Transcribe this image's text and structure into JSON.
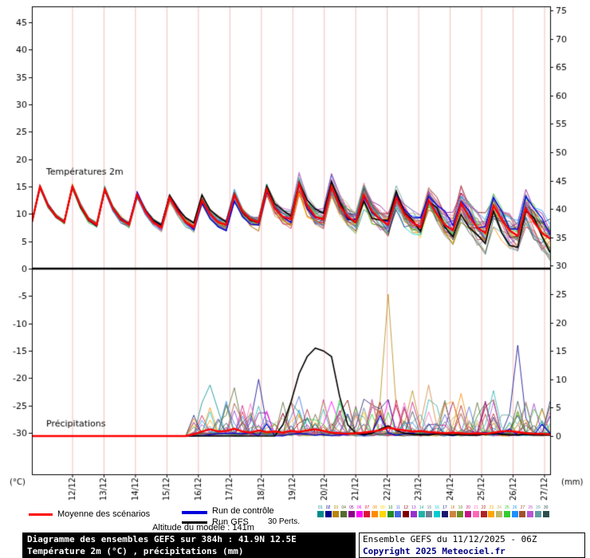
{
  "chart_data": {
    "type": "line",
    "title": "Diagramme des ensembles GEFS sur 384h : 41.9N 12.5E",
    "panels": {
      "temperature_label": "Températures 2m",
      "precipitation_label": "Précipitations"
    },
    "x_dates": [
      "12/12",
      "13/12",
      "14/12",
      "15/12",
      "16/12",
      "17/12",
      "18/12",
      "19/12",
      "20/12",
      "21/12",
      "22/12",
      "23/12",
      "24/12",
      "25/12",
      "26/12",
      "27/12"
    ],
    "left_axis": {
      "unit": "(°C)",
      "ticks": [
        45,
        40,
        35,
        30,
        25,
        20,
        15,
        10,
        5,
        0,
        -5,
        -10,
        -15,
        -20,
        -25,
        -30
      ]
    },
    "right_axis": {
      "unit": "(mm)",
      "ticks": [
        75,
        70,
        65,
        60,
        55,
        50,
        45,
        40,
        35,
        30,
        25,
        20,
        15,
        10,
        5,
        0
      ]
    },
    "step_hours": 6,
    "run_hours": 384,
    "series": {
      "temp_mean": [
        8.5,
        15,
        11.5,
        9.5,
        8.5,
        15,
        11.5,
        9,
        8,
        14.5,
        11,
        9,
        8,
        13.5,
        10.5,
        8.5,
        7.5,
        13,
        10.5,
        8.5,
        7.5,
        12.5,
        10,
        8.5,
        8,
        13.5,
        10.5,
        9,
        8.5,
        14.5,
        11,
        9.5,
        9,
        15.5,
        11.5,
        9.5,
        9,
        15,
        11.5,
        9.5,
        8.5,
        13.5,
        10.5,
        9,
        8,
        13,
        10,
        8.5,
        7.5,
        12.5,
        10,
        8,
        7,
        12,
        9.5,
        7.5,
        6.5,
        11.5,
        9,
        7,
        6,
        11,
        8.5,
        6.5,
        5.5
      ],
      "precip_mean": [
        0,
        0,
        0,
        0,
        0,
        0,
        0,
        0,
        0,
        0,
        0,
        0,
        0,
        0,
        0,
        0,
        0,
        0,
        0,
        0,
        0.3,
        0.8,
        1.2,
        0.8,
        0.9,
        1.3,
        0.8,
        0.6,
        1.0,
        0.7,
        0.8,
        0.6,
        0.9,
        0.7,
        1.0,
        1.2,
        0.9,
        0.6,
        0.5,
        0.4,
        0.5,
        0.6,
        0.8,
        1.0,
        1.5,
        1.2,
        1.0,
        0.8,
        0.9,
        0.7,
        0.6,
        0.5,
        0.6,
        0.5,
        0.4,
        0.5,
        0.4,
        0.6,
        0.8,
        0.9,
        0.7,
        0.5,
        0.4,
        0.4,
        0.3
      ],
      "gfs_precip": [
        0,
        0,
        0,
        0,
        0,
        0,
        0,
        0,
        0,
        0,
        0,
        0,
        0,
        0,
        0,
        0,
        0,
        0,
        0,
        0,
        0,
        0,
        0,
        0,
        0,
        0,
        0,
        0,
        0,
        0,
        0,
        2,
        6,
        11,
        14,
        15.5,
        15,
        14,
        7,
        2,
        0.5,
        0.3,
        0.5,
        1.2,
        1.8,
        1,
        0.5,
        0.3,
        0.3,
        0.2,
        0.4,
        0.3,
        0.2,
        0.3,
        0.2,
        0.2,
        0.3,
        0.4,
        0.3,
        0.2,
        0.2,
        0.3,
        0.2,
        0.2,
        0.2
      ]
    },
    "precip_spikes": [
      {
        "member": 2,
        "t": 44,
        "value": 25
      },
      {
        "member": 1,
        "t": 60,
        "value": 16
      },
      {
        "member": 1,
        "t": 28,
        "value": 10
      },
      {
        "member": 0,
        "t": 22,
        "value": 9
      },
      {
        "member": 3,
        "t": 25,
        "value": 8.5
      },
      {
        "member": 17,
        "t": 49,
        "value": 9
      },
      {
        "member": 7,
        "t": 53,
        "value": 7.5
      },
      {
        "member": 13,
        "t": 57,
        "value": 8
      },
      {
        "member": 4,
        "t": 52,
        "value": 6
      },
      {
        "member": 10,
        "t": 33,
        "value": 7
      },
      {
        "member": 2,
        "t": 47,
        "value": 8
      },
      {
        "member": 16,
        "t": 41,
        "value": 6.5
      }
    ],
    "ensemble": {
      "count": 30,
      "palette": [
        "#008b8b",
        "#00008b",
        "#b8860b",
        "#556b2f",
        "#8b008b",
        "#ff00ff",
        "#dc143c",
        "#ff8c00",
        "#ffd700",
        "#228b22",
        "#4169e1",
        "#800000",
        "#9932cc",
        "#20b2aa",
        "#708090",
        "#00ced1",
        "#191970",
        "#cd853f",
        "#6b8e23",
        "#c71585",
        "#ff69b4",
        "#b22222",
        "#ffa500",
        "#bdb76b",
        "#32cd32",
        "#1e90ff",
        "#a0522d",
        "#ba55d3",
        "#5f9ea0",
        "#2f4f4f"
      ]
    },
    "colors": {
      "mean": "#ff0000",
      "control": "#0000dd",
      "gfs": "#000000",
      "grid": "#f0bfbf"
    }
  },
  "legend": {
    "mean": "Moyenne des scénarios",
    "control": "Run de contrôle",
    "gfs": "Run GFS",
    "perts": "30 Perts.",
    "altitude": "Altitude du modele : 141m"
  },
  "footer": {
    "title": "Diagramme des ensembles GEFS sur 384h : 41.9N 12.5E",
    "subtitle": "Température 2m (°C) , précipitations (mm)",
    "run": "Ensemble GEFS du 11/12/2025 - 06Z",
    "copyright": "Copyright 2025 Meteociel.fr"
  }
}
